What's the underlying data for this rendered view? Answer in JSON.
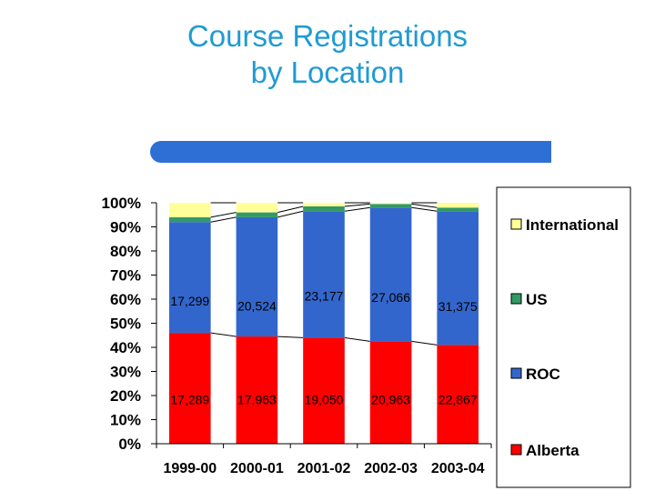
{
  "title_line1": "Course Registrations",
  "title_line2": "by Location",
  "colors": {
    "title": "#1f9bd3",
    "accent_bar": "#2e6fd6",
    "alberta": "#ff0000",
    "roc": "#3366cc",
    "us": "#339966",
    "international": "#ffff99"
  },
  "chart_data": {
    "type": "bar",
    "stacked": true,
    "percent_stacked": true,
    "categories": [
      "1999-00",
      "2000-01",
      "2001-02",
      "2002-03",
      "2003-04"
    ],
    "ylim": [
      0,
      100
    ],
    "yticks": [
      "0%",
      "10%",
      "20%",
      "30%",
      "40%",
      "50%",
      "60%",
      "70%",
      "80%",
      "90%",
      "100%"
    ],
    "grid": false,
    "legend_position": "right",
    "series": [
      {
        "name": "Alberta",
        "color": "#ff0000",
        "values": [
          46,
          44.5,
          44,
          42.5,
          41
        ],
        "labels": [
          "17,289",
          "17,963",
          "19,050",
          "20,963",
          "22,867"
        ]
      },
      {
        "name": "ROC",
        "color": "#3366cc",
        "values": [
          46,
          49.5,
          52.5,
          55.5,
          55.5
        ],
        "labels": [
          "17,299",
          "20,524",
          "23,177",
          "27,066",
          "31,375"
        ]
      },
      {
        "name": "US",
        "color": "#339966",
        "values": [
          2,
          2,
          2,
          1.5,
          1.5
        ]
      },
      {
        "name": "International",
        "color": "#ffff99",
        "values": [
          6,
          4,
          1.5,
          0.5,
          2
        ]
      }
    ]
  }
}
